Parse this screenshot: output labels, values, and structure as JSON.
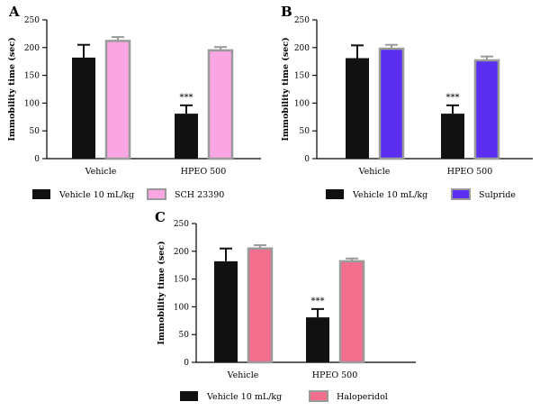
{
  "colors": {
    "vehicle": "#111111",
    "bar_outline": "#9a9a9a",
    "axis": "#000000"
  },
  "chart_data": [
    {
      "type": "bar",
      "panel": "A",
      "categories": [
        "Vehicle",
        "HPEO 500"
      ],
      "ylabel": "Immobility time (sec)",
      "ylim": [
        0,
        250
      ],
      "yticks": [
        0,
        50,
        100,
        150,
        200,
        250
      ],
      "series": [
        {
          "name": "Vehicle 10 mL/kg",
          "color": "#111111",
          "values": [
            182,
            81
          ],
          "errors": [
            23,
            15
          ]
        },
        {
          "name": "SCH 23390",
          "color": "#f9a6e3",
          "values": [
            212,
            195
          ],
          "errors": [
            7,
            6
          ]
        }
      ],
      "annotations": [
        {
          "text": "***",
          "category": 1,
          "series": 0
        }
      ],
      "legend": "bottom"
    },
    {
      "type": "bar",
      "panel": "B",
      "categories": [
        "Vehicle",
        "HPEO 500"
      ],
      "ylabel": "Immobility time (sec)",
      "ylim": [
        0,
        250
      ],
      "yticks": [
        0,
        50,
        100,
        150,
        200,
        250
      ],
      "series": [
        {
          "name": "Vehicle 10 mL/kg",
          "color": "#111111",
          "values": [
            181,
            81
          ],
          "errors": [
            23,
            15
          ]
        },
        {
          "name": "Sulpride",
          "color": "#5b2ff0",
          "values": [
            198,
            177
          ],
          "errors": [
            7,
            7
          ]
        }
      ],
      "annotations": [
        {
          "text": "***",
          "category": 1,
          "series": 0
        }
      ],
      "legend": "bottom"
    },
    {
      "type": "bar",
      "panel": "C",
      "categories": [
        "Vehicle",
        "HPEO 500"
      ],
      "ylabel": "Immobility time (sec)",
      "ylim": [
        0,
        250
      ],
      "yticks": [
        0,
        50,
        100,
        150,
        200,
        250
      ],
      "series": [
        {
          "name": "Vehicle 10 mL/kg",
          "color": "#111111",
          "values": [
            182,
            81
          ],
          "errors": [
            23,
            15
          ]
        },
        {
          "name": "Haloperidol",
          "color": "#f2708e",
          "values": [
            205,
            182
          ],
          "errors": [
            6,
            5
          ]
        }
      ],
      "annotations": [
        {
          "text": "***",
          "category": 1,
          "series": 0
        }
      ],
      "legend": "bottom"
    }
  ]
}
